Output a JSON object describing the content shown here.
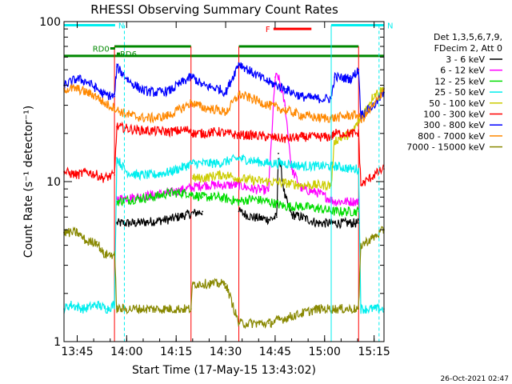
{
  "chart_data": {
    "type": "line",
    "title": "RHESSI Observing Summary Count Rates",
    "xlabel": "Start Time (17-May-15 13:43:02)",
    "ylabel": "Count Rate (s⁻¹ detector⁻¹)",
    "y_scale": "log",
    "ylim": [
      1,
      100
    ],
    "xlim_minutes": [
      -2,
      95
    ],
    "x_ticks": [
      {
        "label": "13:45",
        "min": 2
      },
      {
        "label": "14:00",
        "min": 17
      },
      {
        "label": "14:15",
        "min": 32
      },
      {
        "label": "14:30",
        "min": 47
      },
      {
        "label": "14:45",
        "min": 62
      },
      {
        "label": "15:00",
        "min": 77
      },
      {
        "label": "15:15",
        "min": 92
      }
    ],
    "y_ticks": [
      {
        "label": "1",
        "value": 1
      },
      {
        "label": "10",
        "value": 10
      },
      {
        "label": "100",
        "value": 100
      }
    ],
    "legend_header": [
      "Det 1,3,5,6,7,9,",
      "FDecim 2, Att 0"
    ],
    "legend_position": "right",
    "series": [
      {
        "name": "3 - 6 keV",
        "color": "#000000",
        "x": [
          0,
          10,
          13.3,
          14,
          20,
          30,
          35,
          40,
          47,
          51,
          55,
          60,
          62.5,
          63,
          65,
          67,
          70,
          75,
          80,
          87.3,
          88,
          92,
          95
        ],
        "y": [
          null,
          null,
          null,
          5.5,
          5.5,
          5.8,
          6.2,
          6.5,
          null,
          6.5,
          6.0,
          5.8,
          6.0,
          15,
          8,
          6.2,
          6.0,
          5.5,
          5.5,
          5.5,
          null,
          null,
          null
        ]
      },
      {
        "name": "6 - 12 keV",
        "color": "#ff00ff",
        "x": [
          0,
          13.3,
          14,
          20,
          30,
          35,
          40,
          45,
          51,
          55,
          60,
          62,
          63,
          65,
          67,
          70,
          75,
          80,
          87.3,
          88,
          95
        ],
        "y": [
          null,
          null,
          7.8,
          8.0,
          8.5,
          9.0,
          9.5,
          9.5,
          9.5,
          9.0,
          8.8,
          45,
          45,
          30,
          12,
          9.0,
          8.5,
          7.5,
          7.5,
          null,
          null
        ]
      },
      {
        "name": "12 - 25 keV",
        "color": "#00dd00",
        "x": [
          0,
          13.3,
          14,
          20,
          25,
          30,
          35,
          40,
          45,
          51,
          55,
          60,
          65,
          70,
          75,
          80,
          87.3,
          88,
          95
        ],
        "y": [
          null,
          null,
          7.5,
          7.8,
          8.0,
          8.5,
          8.5,
          8.0,
          8.0,
          7.5,
          7.8,
          7.5,
          7.0,
          7.0,
          6.8,
          6.5,
          6.5,
          null,
          null
        ]
      },
      {
        "name": "25 - 50 keV",
        "color": "#00eeee",
        "x": [
          -2,
          0,
          4,
          8,
          11,
          13.3,
          14,
          17,
          20,
          25,
          30,
          35,
          36.5,
          37,
          40,
          45,
          51,
          55,
          60,
          65,
          70,
          75,
          80,
          85,
          87.3,
          88,
          92,
          95
        ],
        "y": [
          1.6,
          1.7,
          1.6,
          1.7,
          1.6,
          1.7,
          14,
          11.5,
          11,
          11,
          11.5,
          12.5,
          13,
          13,
          13,
          13,
          14,
          13.5,
          13,
          13,
          12.5,
          12.5,
          12.5,
          12,
          12,
          1.6,
          1.6,
          1.6
        ]
      },
      {
        "name": "50 - 100 keV",
        "color": "#cccc00",
        "x": [
          -2,
          5,
          10,
          13.3,
          14,
          20,
          30,
          36.5,
          37,
          40,
          45,
          47,
          51,
          55,
          60,
          65,
          70,
          75,
          79,
          80,
          85,
          88,
          92,
          95
        ],
        "y": [
          null,
          null,
          null,
          null,
          null,
          null,
          null,
          null,
          10.5,
          10.5,
          11,
          11,
          10.5,
          10.2,
          10,
          9.8,
          9.5,
          9.5,
          9.5,
          18,
          20,
          25,
          35,
          38
        ]
      },
      {
        "name": "100 - 300 keV",
        "color": "#ff0000",
        "x": [
          -2,
          2,
          5,
          8,
          10,
          13.3,
          14,
          20,
          30,
          35,
          36.5,
          37,
          40,
          45,
          47,
          51,
          55,
          60,
          65,
          70,
          75,
          79,
          80,
          85,
          87.3,
          88,
          92,
          95
        ],
        "y": [
          11.5,
          11,
          11.5,
          11,
          10.5,
          11,
          22,
          21,
          20.5,
          21,
          21,
          20,
          20,
          20.5,
          20,
          19.5,
          19.5,
          19,
          18.5,
          19,
          19,
          19,
          20,
          20,
          20,
          9.5,
          11,
          12
        ]
      },
      {
        "name": "300 - 800 keV",
        "color": "#0000ff",
        "x": [
          -2,
          2,
          5,
          8,
          10,
          13.3,
          14,
          18,
          22,
          26,
          30,
          34,
          36.5,
          37,
          40,
          45,
          47,
          51,
          55,
          60,
          65,
          70,
          75,
          79,
          80,
          85,
          87.3,
          88,
          92,
          95
        ],
        "y": [
          40,
          44,
          42,
          38,
          35,
          34,
          52,
          42,
          37,
          36,
          37,
          42,
          45,
          45,
          40,
          38,
          36,
          55,
          48,
          42,
          38,
          34,
          33,
          33,
          45,
          44,
          50,
          26,
          30,
          36
        ]
      },
      {
        "name": "800 - 7000 keV",
        "color": "#ff8800",
        "x": [
          -2,
          2,
          5,
          8,
          10,
          13.3,
          14,
          18,
          22,
          26,
          30,
          34,
          36.5,
          37,
          40,
          45,
          47,
          51,
          55,
          60,
          65,
          70,
          75,
          79,
          80,
          85,
          87.3,
          88,
          92,
          95
        ],
        "y": [
          38,
          38,
          36,
          34,
          31,
          29,
          28,
          26,
          25,
          25,
          26,
          29,
          31,
          31,
          29,
          28,
          27,
          35,
          33,
          30,
          28,
          26,
          25,
          25,
          25,
          26,
          26,
          24,
          30,
          38
        ]
      },
      {
        "name": "7000 - 15000 keV",
        "color": "#888800",
        "x": [
          -2,
          2,
          5,
          8,
          10,
          13.3,
          14,
          20,
          25,
          30,
          36.5,
          37,
          40,
          45,
          47,
          51,
          55,
          60,
          65,
          70,
          75,
          80,
          85,
          87.3,
          88,
          92,
          95
        ],
        "y": [
          4.8,
          4.8,
          4.2,
          4.2,
          3.5,
          3.5,
          1.6,
          1.6,
          1.6,
          1.6,
          1.6,
          2.3,
          2.3,
          2.3,
          2.3,
          1.3,
          1.3,
          1.3,
          1.4,
          1.5,
          1.6,
          1.6,
          1.6,
          1.6,
          4.0,
          4.5,
          5.0
        ]
      }
    ],
    "annotations": [
      {
        "text": "N",
        "color": "#00eeee",
        "x_start": -2,
        "x_end": 13.5,
        "y": 95,
        "vlines": [
          -2,
          16.3
        ]
      },
      {
        "text": "N",
        "color": "#00eeee",
        "x_start": 79,
        "x_end": 95,
        "y": 95,
        "vlines": [
          79,
          93.5
        ]
      },
      {
        "text": "F",
        "color": "#ff0000",
        "x_start": 61.5,
        "x_end": 73,
        "y": 90
      },
      {
        "text": "RD0",
        "color": "#008800",
        "x_start": 12,
        "x_end": 13.5,
        "y": 68
      },
      {
        "text": "RD6",
        "color": "#008800",
        "x_start": 14,
        "x_end": 15,
        "y": 63
      }
    ],
    "status_bars": [
      {
        "color": "#008800",
        "y": 61,
        "ranges": [
          [
            -2,
            95
          ]
        ]
      },
      {
        "color": "#008800",
        "y": 70,
        "ranges": [
          [
            13.3,
            36.5
          ],
          [
            51,
            87.3
          ]
        ]
      }
    ]
  },
  "footer": {
    "timestamp": "26-Oct-2021 02:47"
  }
}
